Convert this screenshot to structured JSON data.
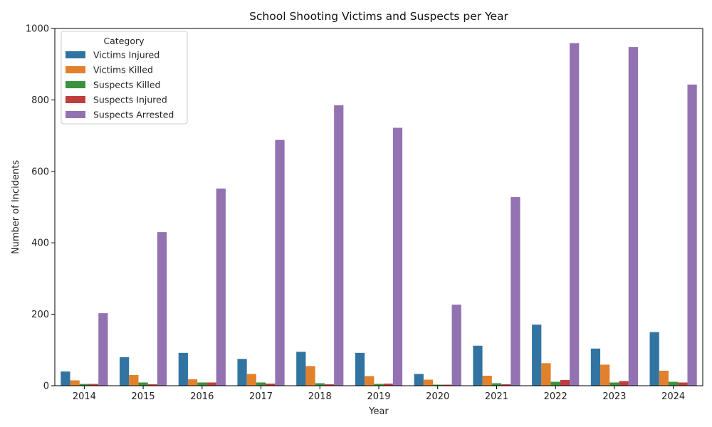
{
  "chart_data": {
    "type": "bar",
    "title": "School Shooting Victims and Suspects per Year",
    "xlabel": "Year",
    "ylabel": "Number of Incidents",
    "categories": [
      "2014",
      "2015",
      "2016",
      "2017",
      "2018",
      "2019",
      "2020",
      "2021",
      "2022",
      "2023",
      "2024"
    ],
    "ylim": [
      0,
      1000
    ],
    "yticks": [
      0,
      200,
      400,
      600,
      800,
      1000
    ],
    "grid": false,
    "legend": {
      "title": "Category",
      "placement": "top-left"
    },
    "series": [
      {
        "name": "Victims Injured",
        "color": "#3274a1",
        "values": [
          40,
          80,
          92,
          75,
          95,
          92,
          33,
          112,
          171,
          104,
          150
        ]
      },
      {
        "name": "Victims Killed",
        "color": "#e1812c",
        "values": [
          15,
          30,
          18,
          33,
          55,
          27,
          17,
          28,
          63,
          59,
          42
        ]
      },
      {
        "name": "Suspects Killed",
        "color": "#3a923a",
        "values": [
          5,
          9,
          9,
          9,
          7,
          5,
          3,
          7,
          11,
          9,
          11
        ]
      },
      {
        "name": "Suspects Injured",
        "color": "#c03d3e",
        "values": [
          5,
          4,
          9,
          6,
          4,
          6,
          3,
          4,
          16,
          13,
          9
        ]
      },
      {
        "name": "Suspects Arrested",
        "color": "#9372b2",
        "values": [
          203,
          430,
          552,
          688,
          785,
          722,
          227,
          528,
          959,
          948,
          843
        ]
      }
    ]
  }
}
